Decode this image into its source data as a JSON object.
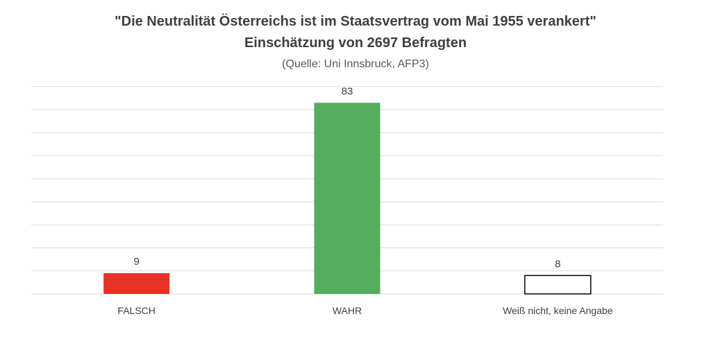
{
  "chart_data": {
    "type": "bar",
    "title": "\"Die Neutralität Österreichs ist im Staatsvertrag vom Mai 1955 verankert\"",
    "subtitle": "Einschätzung von  2697 Befragten",
    "source": "(Quelle: Uni Innsbruck, AFP3)",
    "categories": [
      "FALSCH",
      "WAHR",
      "Weiß nicht, keine Angabe"
    ],
    "values": [
      9,
      83,
      8
    ],
    "data_labels": [
      "9",
      "83",
      "8"
    ],
    "colors": [
      "#E63323",
      "#55AD5F",
      "#FFFFFF"
    ],
    "outline_color": "#000000",
    "ylim": [
      0,
      90
    ],
    "grid": true,
    "grid_step": 10,
    "xlabel": "",
    "ylabel": ""
  }
}
